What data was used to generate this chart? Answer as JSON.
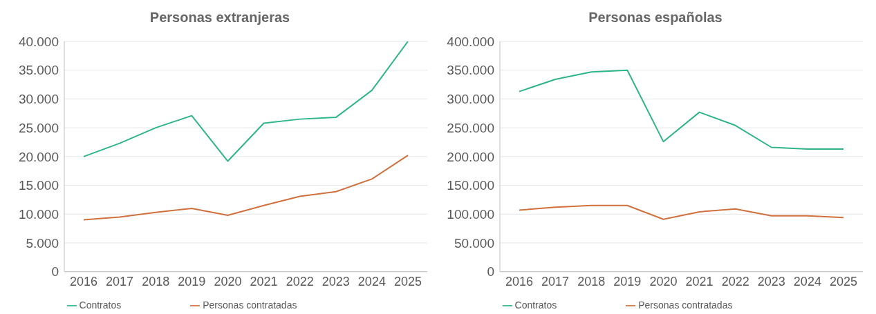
{
  "chart_data": [
    {
      "type": "line",
      "title": "Personas extranjeras",
      "categories": [
        "2016",
        "2017",
        "2018",
        "2019",
        "2020",
        "2021",
        "2022",
        "2023",
        "2024",
        "2025"
      ],
      "series": [
        {
          "name": "Contratos",
          "color": "#2db585",
          "values": [
            20000,
            22300,
            25000,
            27100,
            19200,
            25800,
            26500,
            26800,
            31500,
            40000
          ]
        },
        {
          "name": "Personas contratadas",
          "color": "#d0703c",
          "values": [
            9000,
            9500,
            10300,
            11000,
            9800,
            11500,
            13100,
            13900,
            16100,
            20200
          ]
        }
      ],
      "ylim": [
        0,
        40000
      ],
      "yticks": [
        0,
        {
          "value": 5000,
          "label": "5.000"
        },
        {
          "value": 10000,
          "label": "10.000"
        },
        {
          "value": 15000,
          "label": "15.000"
        },
        {
          "value": 20000,
          "label": "20.000"
        },
        {
          "value": 25000,
          "label": "25.000"
        },
        {
          "value": 30000,
          "label": "30.000"
        },
        {
          "value": 35000,
          "label": "35.000"
        },
        {
          "value": 40000,
          "label": "40.000"
        }
      ],
      "grid": "y",
      "legend": "bottom",
      "marker": "none",
      "line_style": "solid"
    },
    {
      "type": "line",
      "title": "Personas españolas",
      "categories": [
        "2016",
        "2017",
        "2018",
        "2019",
        "2020",
        "2021",
        "2022",
        "2023",
        "2024",
        "2025"
      ],
      "series": [
        {
          "name": "Contratos",
          "color": "#2db585",
          "values": [
            313000,
            334000,
            347000,
            350000,
            226000,
            277000,
            254000,
            216000,
            213000,
            213000
          ]
        },
        {
          "name": "Personas contratadas",
          "color": "#d0703c",
          "values": [
            107000,
            112000,
            115000,
            115000,
            91000,
            104000,
            109000,
            97000,
            97000,
            94000
          ]
        }
      ],
      "ylim": [
        0,
        400000
      ],
      "yticks": [
        0,
        {
          "value": 50000,
          "label": "50.000"
        },
        {
          "value": 100000,
          "label": "100.000"
        },
        {
          "value": 150000,
          "label": "150.000"
        },
        {
          "value": 200000,
          "label": "200.000"
        },
        {
          "value": 250000,
          "label": "250.000"
        },
        {
          "value": 300000,
          "label": "300.000"
        },
        {
          "value": 350000,
          "label": "350.000"
        },
        {
          "value": 400000,
          "label": "400.000"
        }
      ],
      "grid": "y",
      "legend": "bottom",
      "marker": "none",
      "line_style": "solid"
    }
  ]
}
